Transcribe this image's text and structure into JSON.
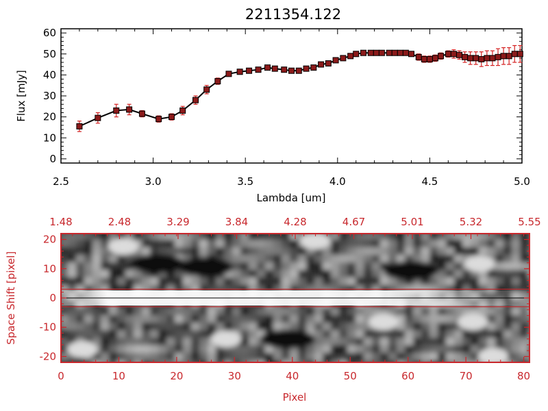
{
  "title": "2211354.122",
  "chart_data": [
    {
      "type": "line",
      "name": "flux-spectrum",
      "xlabel": "Lambda [um]",
      "ylabel": "Flux [mJy]",
      "xlim": [
        2.5,
        5.0
      ],
      "ylim": [
        -2,
        62
      ],
      "xticks": [
        "2.5",
        "3.0",
        "3.5",
        "4.0",
        "4.5",
        "5.0"
      ],
      "yticks": [
        "0",
        "10",
        "20",
        "30",
        "40",
        "50",
        "60"
      ],
      "series": [
        {
          "name": "flux",
          "x": [
            2.6,
            2.7,
            2.8,
            2.87,
            2.94,
            3.03,
            3.1,
            3.16,
            3.23,
            3.29,
            3.35,
            3.41,
            3.47,
            3.52,
            3.57,
            3.62,
            3.66,
            3.71,
            3.75,
            3.79,
            3.83,
            3.87,
            3.91,
            3.95,
            3.99,
            4.03,
            4.07,
            4.1,
            4.14,
            4.18,
            4.21,
            4.24,
            4.28,
            4.31,
            4.34,
            4.37,
            4.4,
            4.44,
            4.47,
            4.5,
            4.53,
            4.56,
            4.6,
            4.63,
            4.66,
            4.69,
            4.72,
            4.75,
            4.78,
            4.81,
            4.84,
            4.87,
            4.9,
            4.93,
            4.96,
            4.99
          ],
          "y": [
            15.5,
            19.5,
            23,
            23.5,
            21.5,
            19,
            20,
            23,
            28,
            33,
            37,
            40.5,
            41.5,
            42,
            42.5,
            43.5,
            43,
            42.5,
            42,
            42,
            43,
            43.5,
            45,
            45.5,
            47,
            48,
            49,
            50,
            50.5,
            50.5,
            50.5,
            50.5,
            50.5,
            50.5,
            50.5,
            50.5,
            50,
            48.5,
            47.5,
            47.5,
            48,
            49,
            50,
            50,
            49.5,
            48.5,
            48,
            48,
            47.5,
            48,
            48,
            48.5,
            49,
            49,
            50,
            50
          ],
          "yerr": [
            2.5,
            2.5,
            3,
            2.5,
            1.5,
            1.5,
            1.5,
            2,
            2,
            2,
            1.5,
            1,
            1,
            1,
            1,
            1,
            1,
            1,
            1,
            1,
            1,
            1,
            1,
            1,
            1,
            1,
            1,
            1,
            1,
            1,
            1,
            1,
            1,
            1,
            1,
            1,
            1,
            1.5,
            1.5,
            1.5,
            1.5,
            1.5,
            1.5,
            2,
            2,
            2.5,
            3,
            3,
            3.5,
            3.5,
            3.5,
            4,
            4,
            4,
            4,
            4
          ]
        }
      ]
    },
    {
      "type": "heatmap",
      "name": "space-shift-image",
      "xlabel": "Pixel",
      "ylabel": "Space Shift [pixel]",
      "xlim": [
        0,
        81
      ],
      "ylim": [
        -22,
        22
      ],
      "xticks": [
        "0",
        "10",
        "20",
        "30",
        "40",
        "50",
        "60",
        "70",
        "80"
      ],
      "yticks": [
        "-20",
        "-10",
        "0",
        "10",
        "20"
      ],
      "top_axis_ticks": [
        "1.48",
        "2.48",
        "3.29",
        "3.84",
        "4.28",
        "4.67",
        "5.01",
        "5.32",
        "5.55"
      ],
      "trace_center": 0,
      "aperture_bounds": [
        -3,
        3
      ],
      "colors": {
        "axis": "#c8282d",
        "trace": "#000000",
        "aperture": "#c8282d"
      }
    }
  ],
  "colors": {
    "marker": "#8b1a1a",
    "errorbar": "#d42020",
    "line": "#000000"
  }
}
